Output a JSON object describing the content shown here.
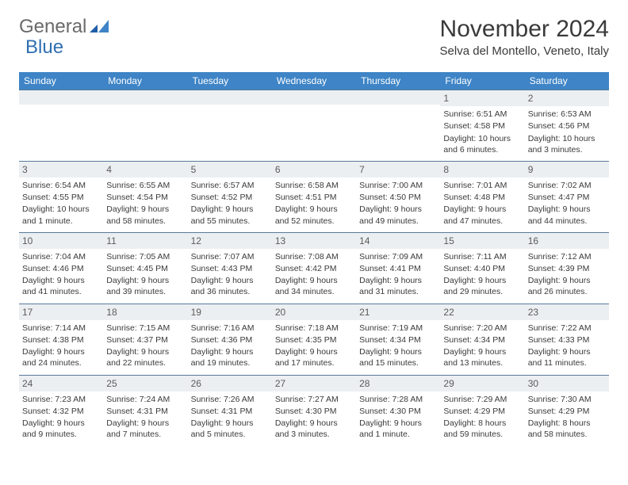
{
  "logo": {
    "word1": "General",
    "word2": "Blue"
  },
  "title": "November 2024",
  "location": "Selva del Montello, Veneto, Italy",
  "colors": {
    "header_bg": "#3e84c6",
    "header_fg": "#ffffff",
    "daynum_bg": "#eceff1",
    "border": "#5a7a9a",
    "logo_gray": "#6a6a6a",
    "logo_blue": "#2f6fb0"
  },
  "weekdays": [
    "Sunday",
    "Monday",
    "Tuesday",
    "Wednesday",
    "Thursday",
    "Friday",
    "Saturday"
  ],
  "weeks": [
    [
      {
        "n": "",
        "sr": "",
        "ss": "",
        "dl": ""
      },
      {
        "n": "",
        "sr": "",
        "ss": "",
        "dl": ""
      },
      {
        "n": "",
        "sr": "",
        "ss": "",
        "dl": ""
      },
      {
        "n": "",
        "sr": "",
        "ss": "",
        "dl": ""
      },
      {
        "n": "",
        "sr": "",
        "ss": "",
        "dl": ""
      },
      {
        "n": "1",
        "sr": "Sunrise: 6:51 AM",
        "ss": "Sunset: 4:58 PM",
        "dl": "Daylight: 10 hours and 6 minutes."
      },
      {
        "n": "2",
        "sr": "Sunrise: 6:53 AM",
        "ss": "Sunset: 4:56 PM",
        "dl": "Daylight: 10 hours and 3 minutes."
      }
    ],
    [
      {
        "n": "3",
        "sr": "Sunrise: 6:54 AM",
        "ss": "Sunset: 4:55 PM",
        "dl": "Daylight: 10 hours and 1 minute."
      },
      {
        "n": "4",
        "sr": "Sunrise: 6:55 AM",
        "ss": "Sunset: 4:54 PM",
        "dl": "Daylight: 9 hours and 58 minutes."
      },
      {
        "n": "5",
        "sr": "Sunrise: 6:57 AM",
        "ss": "Sunset: 4:52 PM",
        "dl": "Daylight: 9 hours and 55 minutes."
      },
      {
        "n": "6",
        "sr": "Sunrise: 6:58 AM",
        "ss": "Sunset: 4:51 PM",
        "dl": "Daylight: 9 hours and 52 minutes."
      },
      {
        "n": "7",
        "sr": "Sunrise: 7:00 AM",
        "ss": "Sunset: 4:50 PM",
        "dl": "Daylight: 9 hours and 49 minutes."
      },
      {
        "n": "8",
        "sr": "Sunrise: 7:01 AM",
        "ss": "Sunset: 4:48 PM",
        "dl": "Daylight: 9 hours and 47 minutes."
      },
      {
        "n": "9",
        "sr": "Sunrise: 7:02 AM",
        "ss": "Sunset: 4:47 PM",
        "dl": "Daylight: 9 hours and 44 minutes."
      }
    ],
    [
      {
        "n": "10",
        "sr": "Sunrise: 7:04 AM",
        "ss": "Sunset: 4:46 PM",
        "dl": "Daylight: 9 hours and 41 minutes."
      },
      {
        "n": "11",
        "sr": "Sunrise: 7:05 AM",
        "ss": "Sunset: 4:45 PM",
        "dl": "Daylight: 9 hours and 39 minutes."
      },
      {
        "n": "12",
        "sr": "Sunrise: 7:07 AM",
        "ss": "Sunset: 4:43 PM",
        "dl": "Daylight: 9 hours and 36 minutes."
      },
      {
        "n": "13",
        "sr": "Sunrise: 7:08 AM",
        "ss": "Sunset: 4:42 PM",
        "dl": "Daylight: 9 hours and 34 minutes."
      },
      {
        "n": "14",
        "sr": "Sunrise: 7:09 AM",
        "ss": "Sunset: 4:41 PM",
        "dl": "Daylight: 9 hours and 31 minutes."
      },
      {
        "n": "15",
        "sr": "Sunrise: 7:11 AM",
        "ss": "Sunset: 4:40 PM",
        "dl": "Daylight: 9 hours and 29 minutes."
      },
      {
        "n": "16",
        "sr": "Sunrise: 7:12 AM",
        "ss": "Sunset: 4:39 PM",
        "dl": "Daylight: 9 hours and 26 minutes."
      }
    ],
    [
      {
        "n": "17",
        "sr": "Sunrise: 7:14 AM",
        "ss": "Sunset: 4:38 PM",
        "dl": "Daylight: 9 hours and 24 minutes."
      },
      {
        "n": "18",
        "sr": "Sunrise: 7:15 AM",
        "ss": "Sunset: 4:37 PM",
        "dl": "Daylight: 9 hours and 22 minutes."
      },
      {
        "n": "19",
        "sr": "Sunrise: 7:16 AM",
        "ss": "Sunset: 4:36 PM",
        "dl": "Daylight: 9 hours and 19 minutes."
      },
      {
        "n": "20",
        "sr": "Sunrise: 7:18 AM",
        "ss": "Sunset: 4:35 PM",
        "dl": "Daylight: 9 hours and 17 minutes."
      },
      {
        "n": "21",
        "sr": "Sunrise: 7:19 AM",
        "ss": "Sunset: 4:34 PM",
        "dl": "Daylight: 9 hours and 15 minutes."
      },
      {
        "n": "22",
        "sr": "Sunrise: 7:20 AM",
        "ss": "Sunset: 4:34 PM",
        "dl": "Daylight: 9 hours and 13 minutes."
      },
      {
        "n": "23",
        "sr": "Sunrise: 7:22 AM",
        "ss": "Sunset: 4:33 PM",
        "dl": "Daylight: 9 hours and 11 minutes."
      }
    ],
    [
      {
        "n": "24",
        "sr": "Sunrise: 7:23 AM",
        "ss": "Sunset: 4:32 PM",
        "dl": "Daylight: 9 hours and 9 minutes."
      },
      {
        "n": "25",
        "sr": "Sunrise: 7:24 AM",
        "ss": "Sunset: 4:31 PM",
        "dl": "Daylight: 9 hours and 7 minutes."
      },
      {
        "n": "26",
        "sr": "Sunrise: 7:26 AM",
        "ss": "Sunset: 4:31 PM",
        "dl": "Daylight: 9 hours and 5 minutes."
      },
      {
        "n": "27",
        "sr": "Sunrise: 7:27 AM",
        "ss": "Sunset: 4:30 PM",
        "dl": "Daylight: 9 hours and 3 minutes."
      },
      {
        "n": "28",
        "sr": "Sunrise: 7:28 AM",
        "ss": "Sunset: 4:30 PM",
        "dl": "Daylight: 9 hours and 1 minute."
      },
      {
        "n": "29",
        "sr": "Sunrise: 7:29 AM",
        "ss": "Sunset: 4:29 PM",
        "dl": "Daylight: 8 hours and 59 minutes."
      },
      {
        "n": "30",
        "sr": "Sunrise: 7:30 AM",
        "ss": "Sunset: 4:29 PM",
        "dl": "Daylight: 8 hours and 58 minutes."
      }
    ]
  ]
}
